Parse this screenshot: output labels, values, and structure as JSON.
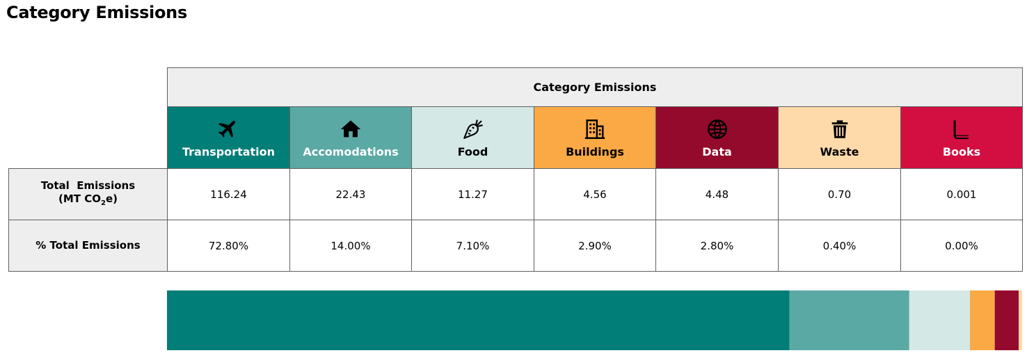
{
  "page_title": "Category Emissions",
  "table": {
    "header": "Category Emissions",
    "row_labels": {
      "total_line1": "Total  Emissions",
      "total_line2_pre": "(MT CO",
      "total_line2_sub": "2",
      "total_line2_post": "e)",
      "percent": "% Total Emissions"
    }
  },
  "chart_data": {
    "type": "table",
    "title": "Category Emissions",
    "categories": [
      "Transportation",
      "Accomodations",
      "Food",
      "Buildings",
      "Data",
      "Waste",
      "Books"
    ],
    "series": [
      {
        "name": "Total Emissions (MT CO2e)",
        "values": [
          "116.24",
          "22.43",
          "11.27",
          "4.56",
          "4.48",
          "0.70",
          "0.001"
        ]
      },
      {
        "name": "% Total Emissions",
        "values": [
          "72.80%",
          "14.00%",
          "7.10%",
          "2.90%",
          "2.80%",
          "0.40%",
          "0.00%"
        ]
      }
    ],
    "bar_shares": [
      72.8,
      14.0,
      7.1,
      2.9,
      2.8,
      0.4,
      0.0
    ],
    "colors": [
      "#017e78",
      "#5aa9a5",
      "#d4e8e6",
      "#fba944",
      "#940a2d",
      "#fed9aa",
      "#d20f40"
    ],
    "text_colors": [
      "#ffffff",
      "#ffffff",
      "#000000",
      "#000000",
      "#ffffff",
      "#000000",
      "#ffffff"
    ],
    "icons": [
      "airplane-icon",
      "house-icon",
      "carrot-icon",
      "building-icon",
      "globe-icon",
      "trash-icon",
      "book-icon"
    ],
    "legend": "none"
  }
}
